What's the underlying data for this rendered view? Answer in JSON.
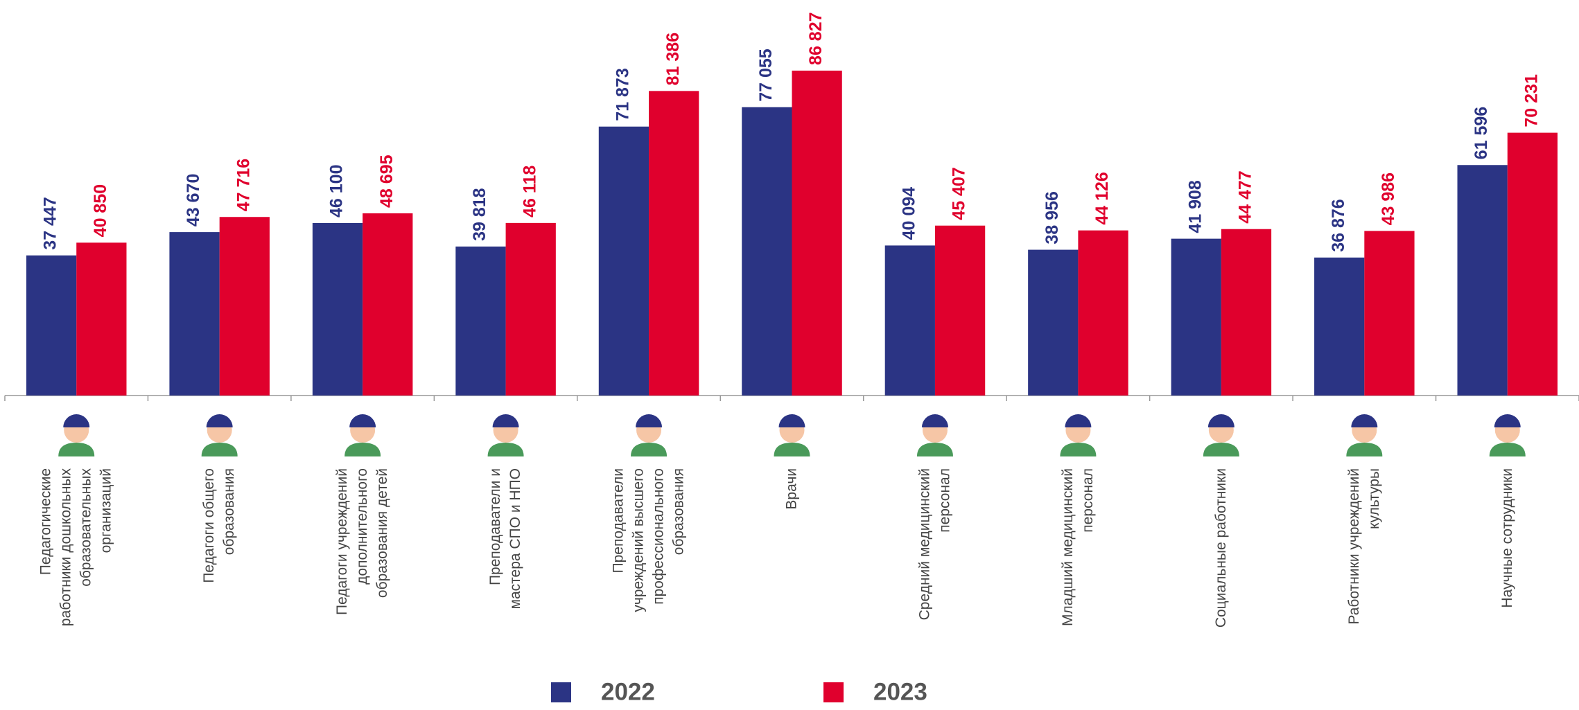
{
  "chart_data": {
    "type": "bar",
    "categories": [
      "Педагогические работники дошкольных образовательных организаций",
      "Педагоги общего образования",
      "Педагоги учреждений дополнительного образования детей",
      "Преподаватели и мастера СПО и НПО",
      "Преподаватели учреждений высшего профессионального образования",
      "Врачи",
      "Средний медицинский персонал",
      "Младший медицинский персонал",
      "Социальные работники",
      "Работники учреждений культуры",
      "Научные сотрудники"
    ],
    "series": [
      {
        "name": "2022",
        "color": "#2b3484",
        "values": [
          37447,
          43670,
          46100,
          39818,
          71873,
          77055,
          40094,
          38956,
          41908,
          36876,
          61596
        ],
        "value_labels": [
          "37 447",
          "43 670",
          "46 100",
          "39 818",
          "71 873",
          "77 055",
          "40 094",
          "38 956",
          "41 908",
          "36 876",
          "61 596"
        ]
      },
      {
        "name": "2023",
        "color": "#e0002d",
        "values": [
          40850,
          47716,
          48695,
          46118,
          81386,
          86827,
          45407,
          44126,
          44477,
          43986,
          70231
        ],
        "value_labels": [
          "40 850",
          "47 716",
          "48 695",
          "46 118",
          "81 386",
          "86 827",
          "45 407",
          "44 126",
          "44 477",
          "43 986",
          "70 231"
        ]
      }
    ],
    "ylim": [
      0,
      105700
    ],
    "grid": false
  }
}
